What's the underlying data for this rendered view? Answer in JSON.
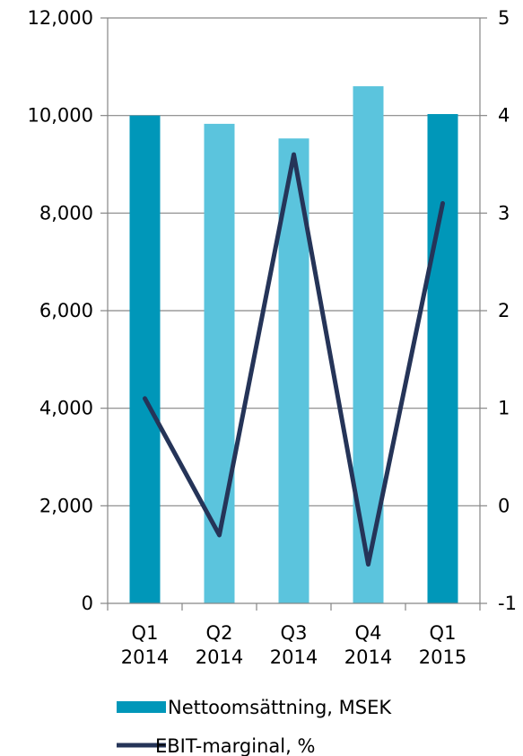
{
  "chart_data": {
    "type": "bar",
    "title": "",
    "categories": [
      [
        "Q1",
        "2014"
      ],
      [
        "Q2",
        "2014"
      ],
      [
        "Q3",
        "2014"
      ],
      [
        "Q4",
        "2014"
      ],
      [
        "Q1",
        "2015"
      ]
    ],
    "y_left": {
      "min": 0,
      "max": 12000,
      "ticks": [
        "0",
        "2,000",
        "4,000",
        "6,000",
        "8,000",
        "10,000",
        "12,000"
      ]
    },
    "y_right": {
      "min": -1,
      "max": 5,
      "ticks": [
        "-1",
        "0",
        "1",
        "2",
        "3",
        "4",
        "5"
      ]
    },
    "grid": true,
    "legend_position": "bottom",
    "series": [
      {
        "name": "Nettoomsättning, MSEK",
        "type": "bar",
        "axis": "left",
        "values": [
          10000,
          9830,
          9530,
          10600,
          10030
        ],
        "colors": [
          "#0097B9",
          "#5BC4DD",
          "#5BC4DD",
          "#5BC4DD",
          "#0097B9"
        ]
      },
      {
        "name": "EBIT-marginal, %",
        "type": "line",
        "axis": "right",
        "values": [
          1.1,
          -0.3,
          3.6,
          -0.6,
          3.1
        ],
        "color": "#253458"
      }
    ]
  }
}
